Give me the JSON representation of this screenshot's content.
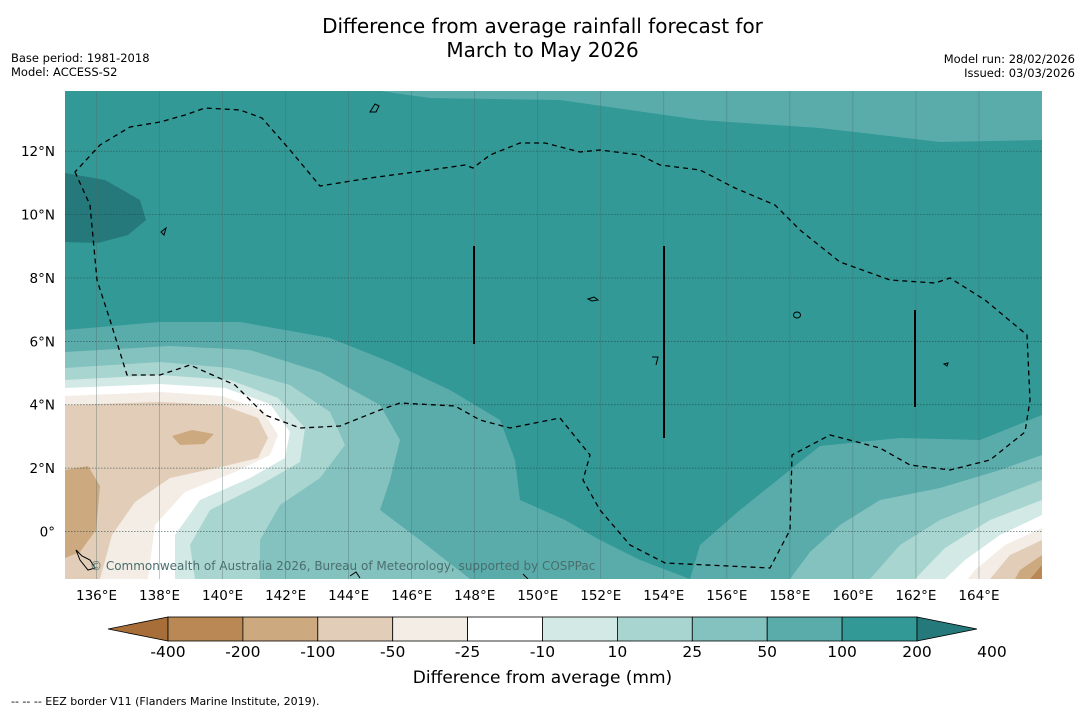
{
  "title": {
    "line1": "Difference from average rainfall forecast for",
    "line2": "March to May 2026"
  },
  "meta_left": {
    "base_period": "Base period: 1981-2018",
    "model": "Model: ACCESS-S2"
  },
  "meta_right": {
    "model_run": "Model run: 28/02/2026",
    "issued": "Issued: 03/03/2026"
  },
  "map": {
    "lon_ticks": [
      "136°E",
      "138°E",
      "140°E",
      "142°E",
      "144°E",
      "146°E",
      "148°E",
      "150°E",
      "152°E",
      "154°E",
      "156°E",
      "158°E",
      "160°E",
      "162°E",
      "164°E"
    ],
    "lat_ticks": [
      "12°N",
      "10°N",
      "8°N",
      "6°N",
      "4°N",
      "2°N",
      "0°"
    ],
    "lon_range": [
      135,
      166
    ],
    "lat_range": [
      -1.5,
      13.9
    ],
    "copyright": "© Commonwealth of Australia 2026, Bureau of Meteorology, supported by COSPPac"
  },
  "colorbar": {
    "labels": [
      "-400",
      "-200",
      "-100",
      "-50",
      "-25",
      "-10",
      "10",
      "25",
      "50",
      "100",
      "200",
      "400"
    ],
    "colors": [
      "#a86e3a",
      "#b98854",
      "#cda97f",
      "#e2cdb8",
      "#f3ede6",
      "#ffffff",
      "#d3e9e6",
      "#a9d5d1",
      "#84c2bf",
      "#5aacab",
      "#329996",
      "#25797a"
    ],
    "title": "Difference from average (mm)"
  },
  "footnote": "--  --  -- EEZ border V11 (Flanders Marine Institute, 2019)."
}
